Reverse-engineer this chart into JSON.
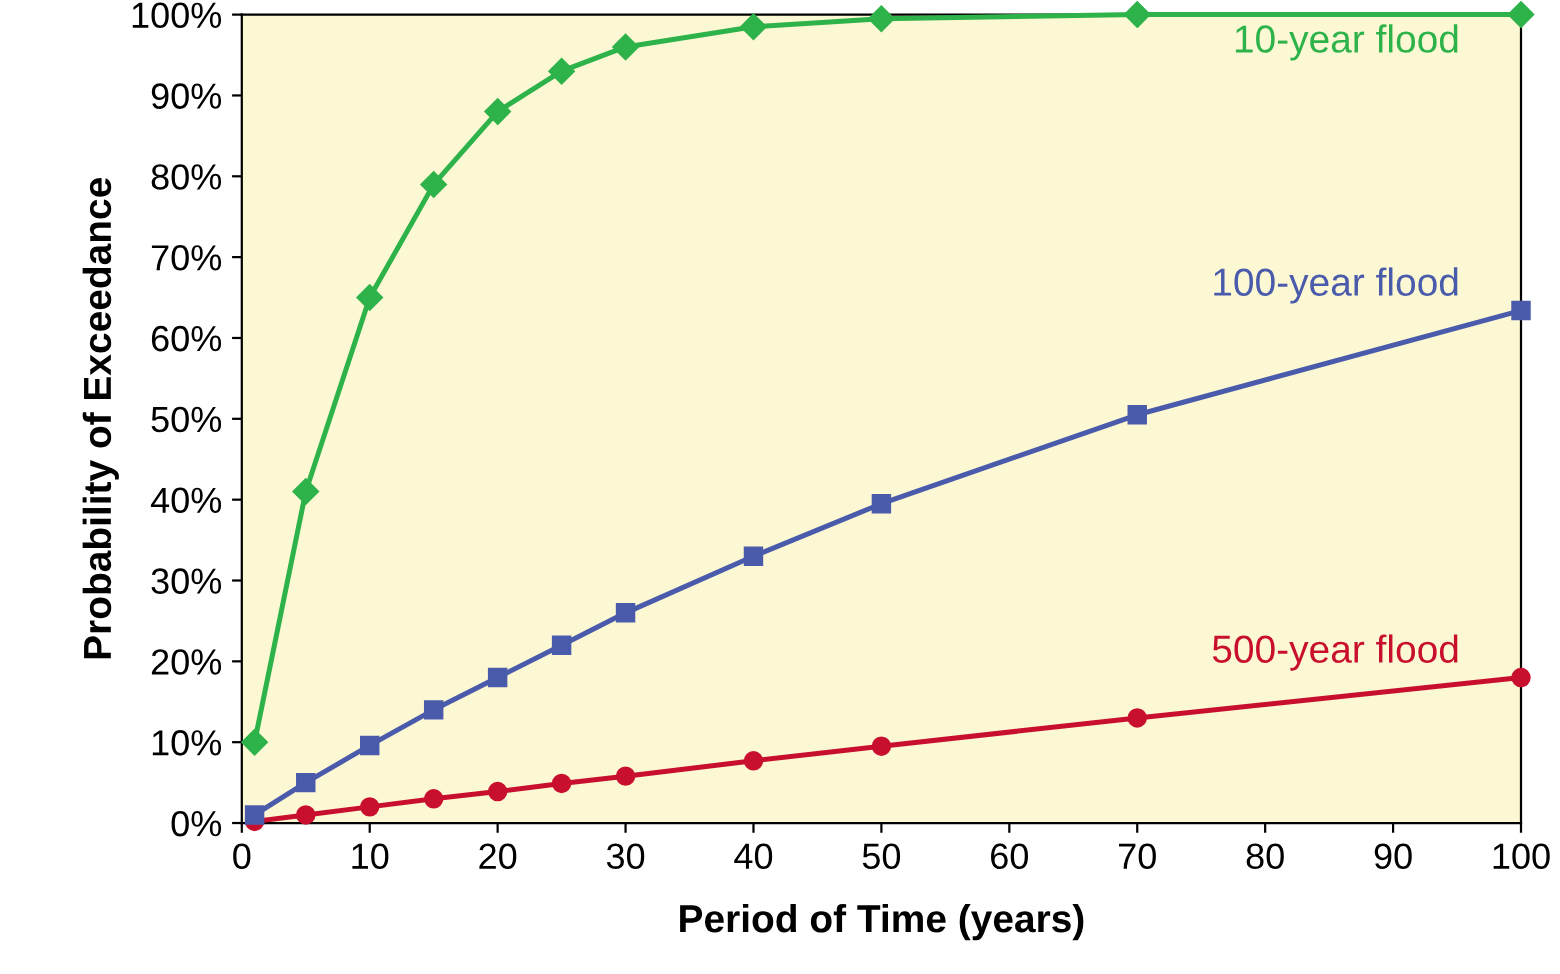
{
  "chart_data": {
    "type": "line",
    "xlabel": "Period of Time (years)",
    "ylabel": "Probability of Exceedance",
    "x": [
      1,
      5,
      10,
      15,
      20,
      25,
      30,
      40,
      50,
      70,
      100
    ],
    "series": [
      {
        "name": "10-year flood",
        "color": "#2eb24a",
        "marker": "diamond",
        "values": [
          10,
          41,
          65,
          79,
          88,
          93,
          96,
          98.5,
          99.5,
          100,
          100
        ]
      },
      {
        "name": "100-year flood",
        "color": "#4a5bab",
        "marker": "square",
        "values": [
          1,
          5,
          9.6,
          14,
          18,
          22,
          26,
          33,
          39.5,
          50.5,
          63.4
        ]
      },
      {
        "name": "500-year flood",
        "color": "#c8102e",
        "marker": "circle",
        "values": [
          0.2,
          1,
          2,
          3,
          3.9,
          4.9,
          5.8,
          7.7,
          9.5,
          13,
          18
        ]
      }
    ],
    "xlim": [
      0,
      100
    ],
    "xticks": [
      0,
      10,
      20,
      30,
      40,
      50,
      60,
      70,
      80,
      90,
      100
    ],
    "ylim": [
      0,
      100
    ],
    "yticks": [
      {
        "value": 0,
        "label": "0%"
      },
      {
        "value": 10,
        "label": "10%"
      },
      {
        "value": 20,
        "label": "20%"
      },
      {
        "value": 30,
        "label": "30%"
      },
      {
        "value": 40,
        "label": "40%"
      },
      {
        "value": 50,
        "label": "50%"
      },
      {
        "value": 60,
        "label": "60%"
      },
      {
        "value": 70,
        "label": "70%"
      },
      {
        "value": 80,
        "label": "80%"
      },
      {
        "value": 90,
        "label": "90%"
      },
      {
        "value": 100,
        "label": "100%"
      }
    ],
    "grid": false,
    "legend": false
  }
}
